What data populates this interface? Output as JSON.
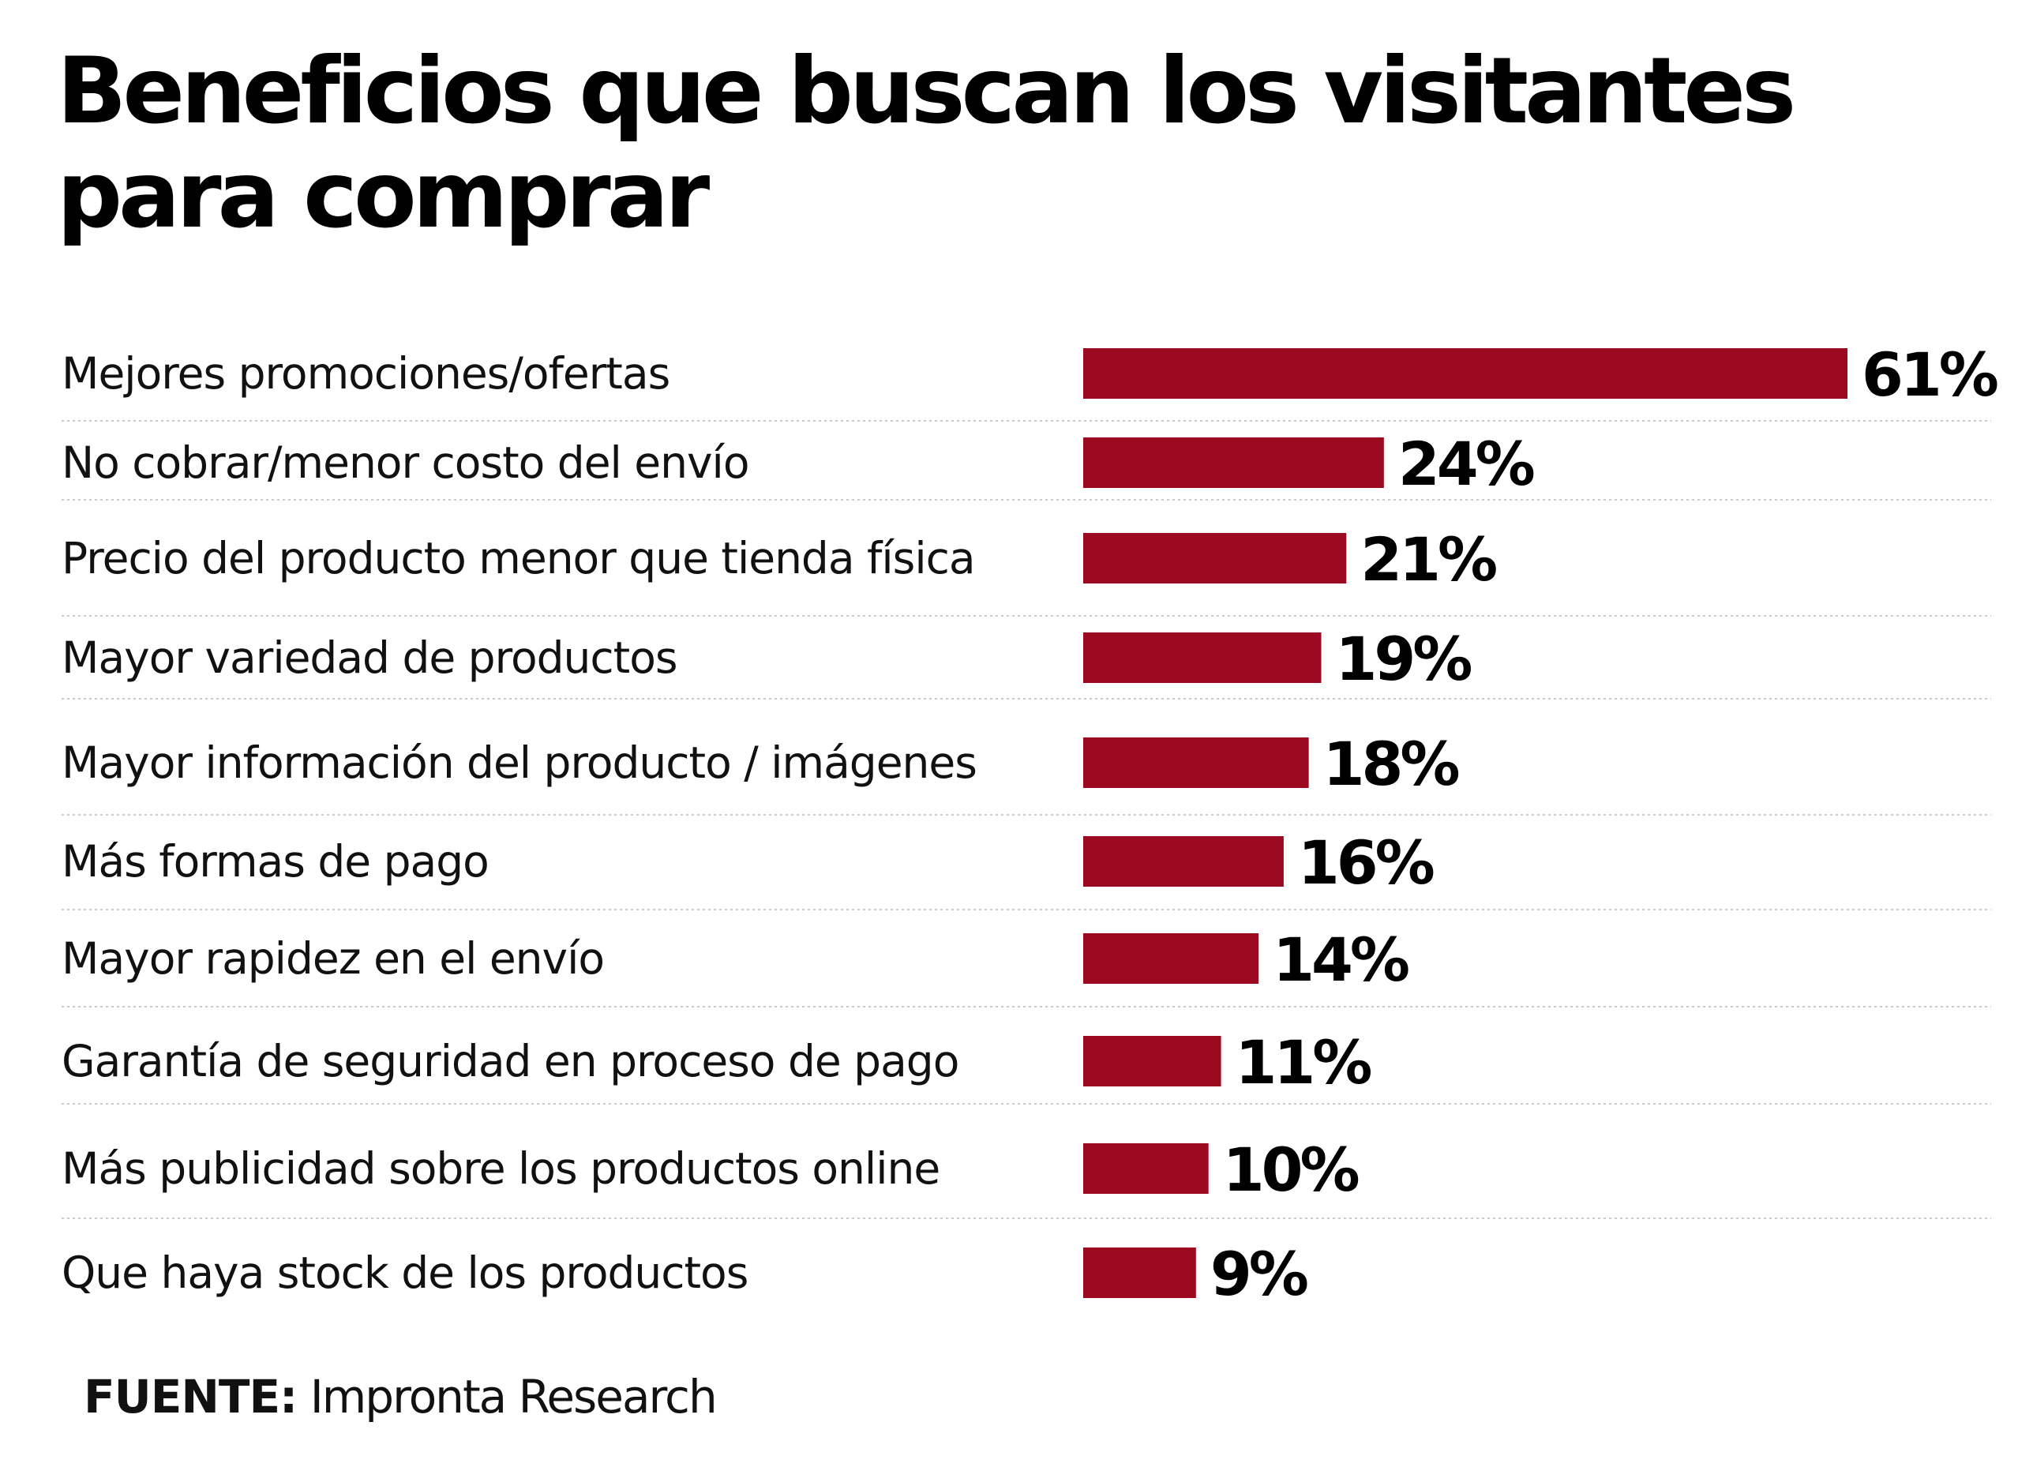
{
  "title": "Beneficios que buscan los visitantes para comprar",
  "source": {
    "label": "FUENTE:",
    "text": "Impronta Research"
  },
  "colors": {
    "bar": "#9c0a22",
    "separator": "#cccccc"
  },
  "chart_data": {
    "type": "bar",
    "orientation": "horizontal",
    "title": "Beneficios que buscan los visitantes para comprar",
    "xlabel": "",
    "ylabel": "",
    "xlim": [
      0,
      61
    ],
    "grid": false,
    "legend": "none",
    "categories": [
      "Mejores promociones/ofertas",
      "No cobrar/menor costo del envío",
      "Precio del producto menor que tienda física",
      "Mayor variedad de productos",
      "Mayor información del producto / imágenes",
      "Más formas de pago",
      "Mayor rapidez en el envío",
      "Garantía de seguridad en proceso de pago",
      "Más publicidad sobre los productos online",
      "Que haya stock de los productos"
    ],
    "values": [
      61,
      24,
      21,
      19,
      18,
      16,
      14,
      11,
      10,
      9
    ],
    "value_labels": [
      "61%",
      "24%",
      "21%",
      "19%",
      "18%",
      "16%",
      "14%",
      "11%",
      "10%",
      "9%"
    ]
  }
}
